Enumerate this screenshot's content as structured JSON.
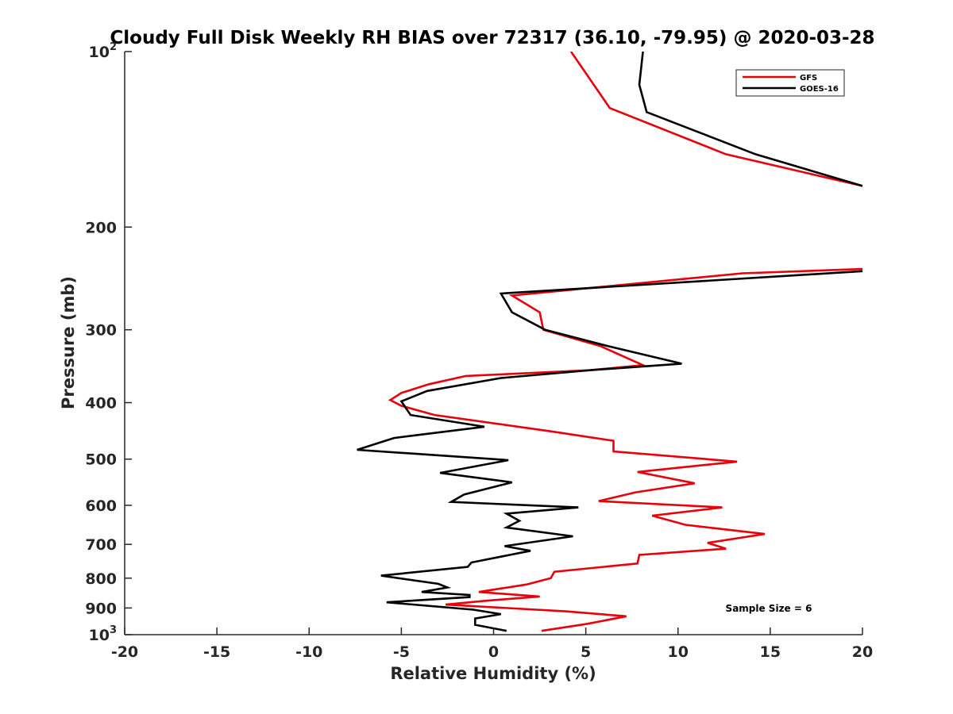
{
  "chart_data": {
    "type": "line",
    "title": "Cloudy Full Disk Weekly RH BIAS over 72317 (36.10, -79.95) @ 2020-03-28",
    "xlabel": "Relative Humidity (%)",
    "ylabel": "Pressure (mb)",
    "xlim": [
      -20,
      20
    ],
    "ylim": [
      100,
      1000
    ],
    "y_scale": "log",
    "y_reversed": true,
    "grid": false,
    "legend_position": "top-right",
    "x_ticks": [
      {
        "value": -20,
        "label": "-20"
      },
      {
        "value": -15,
        "label": "-15"
      },
      {
        "value": -10,
        "label": "-10"
      },
      {
        "value": -5,
        "label": "-5"
      },
      {
        "value": 0,
        "label": "0"
      },
      {
        "value": 5,
        "label": "5"
      },
      {
        "value": 10,
        "label": "10"
      },
      {
        "value": 15,
        "label": "15"
      },
      {
        "value": 20,
        "label": "20"
      }
    ],
    "y_ticks": [
      {
        "value": 100,
        "label": "10",
        "sup": "2"
      },
      {
        "value": 200,
        "label": "200",
        "sup": ""
      },
      {
        "value": 300,
        "label": "300",
        "sup": ""
      },
      {
        "value": 400,
        "label": "400",
        "sup": ""
      },
      {
        "value": 500,
        "label": "500",
        "sup": ""
      },
      {
        "value": 600,
        "label": "600",
        "sup": ""
      },
      {
        "value": 700,
        "label": "700",
        "sup": ""
      },
      {
        "value": 800,
        "label": "800",
        "sup": ""
      },
      {
        "value": 900,
        "label": "900",
        "sup": ""
      },
      {
        "value": 1000,
        "label": "10",
        "sup": "3"
      }
    ],
    "annotation": "Sample Size = 6",
    "series": [
      {
        "name": "GFS",
        "color": "#e8000b",
        "points": [
          [
            4.2,
            100
          ],
          [
            6.3,
            125
          ],
          [
            12.6,
            150
          ],
          [
            20.0,
            170
          ],
          [
            null,
            175
          ],
          [
            20.0,
            236
          ],
          [
            13.5,
            240
          ],
          [
            1.0,
            262
          ],
          [
            2.5,
            280
          ],
          [
            2.7,
            300
          ],
          [
            5.8,
            320
          ],
          [
            8.1,
            345
          ],
          [
            5.2,
            352
          ],
          [
            -1.5,
            360
          ],
          [
            -3.5,
            372
          ],
          [
            -5.0,
            385
          ],
          [
            -5.6,
            396
          ],
          [
            -5.0,
            405
          ],
          [
            -3.2,
            420
          ],
          [
            3.1,
            448
          ],
          [
            6.5,
            465
          ],
          [
            6.5,
            485
          ],
          [
            13.2,
            505
          ],
          [
            7.8,
            526
          ],
          [
            10.9,
            550
          ],
          [
            7.7,
            570
          ],
          [
            5.7,
            590
          ],
          [
            12.4,
            605
          ],
          [
            8.6,
            625
          ],
          [
            10.4,
            648
          ],
          [
            14.7,
            672
          ],
          [
            11.6,
            696
          ],
          [
            12.6,
            712
          ],
          [
            7.9,
            730
          ],
          [
            7.8,
            755
          ],
          [
            3.3,
            780
          ],
          [
            3.1,
            800
          ],
          [
            1.8,
            820
          ],
          [
            -0.8,
            845
          ],
          [
            2.5,
            860
          ],
          [
            -0.5,
            875
          ],
          [
            -2.6,
            888
          ],
          [
            3.9,
            912
          ],
          [
            7.2,
            930
          ],
          [
            5.1,
            958
          ],
          [
            2.6,
            985
          ]
        ]
      },
      {
        "name": "GOES-16",
        "color": "#000000",
        "points": [
          [
            8.1,
            100
          ],
          [
            7.9,
            114
          ],
          [
            8.3,
            127
          ],
          [
            14.2,
            150
          ],
          [
            20.0,
            170
          ],
          [
            null,
            175
          ],
          [
            20.0,
            238
          ],
          [
            0.4,
            260
          ],
          [
            1.0,
            280
          ],
          [
            2.8,
            300
          ],
          [
            6.2,
            320
          ],
          [
            10.2,
            343
          ],
          [
            5.2,
            352
          ],
          [
            0.4,
            363
          ],
          [
            -3.6,
            382
          ],
          [
            -5.0,
            398
          ],
          [
            -4.5,
            420
          ],
          [
            -0.5,
            440
          ],
          [
            -5.4,
            460
          ],
          [
            -7.4,
            482
          ],
          [
            0.8,
            502
          ],
          [
            -2.9,
            528
          ],
          [
            1.0,
            548
          ],
          [
            -1.6,
            575
          ],
          [
            -2.3,
            592
          ],
          [
            4.6,
            605
          ],
          [
            0.7,
            620
          ],
          [
            1.4,
            638
          ],
          [
            0.7,
            655
          ],
          [
            4.3,
            678
          ],
          [
            0.6,
            705
          ],
          [
            2.0,
            718
          ],
          [
            -1.2,
            752
          ],
          [
            -1.4,
            765
          ],
          [
            -6.1,
            792
          ],
          [
            -3.0,
            818
          ],
          [
            -2.5,
            830
          ],
          [
            -3.9,
            845
          ],
          [
            -1.3,
            855
          ],
          [
            -1.3,
            862
          ],
          [
            -5.8,
            880
          ],
          [
            -1.1,
            906
          ],
          [
            0.4,
            922
          ],
          [
            -1.0,
            938
          ],
          [
            -1.0,
            962
          ],
          [
            0.7,
            985
          ]
        ]
      }
    ]
  }
}
